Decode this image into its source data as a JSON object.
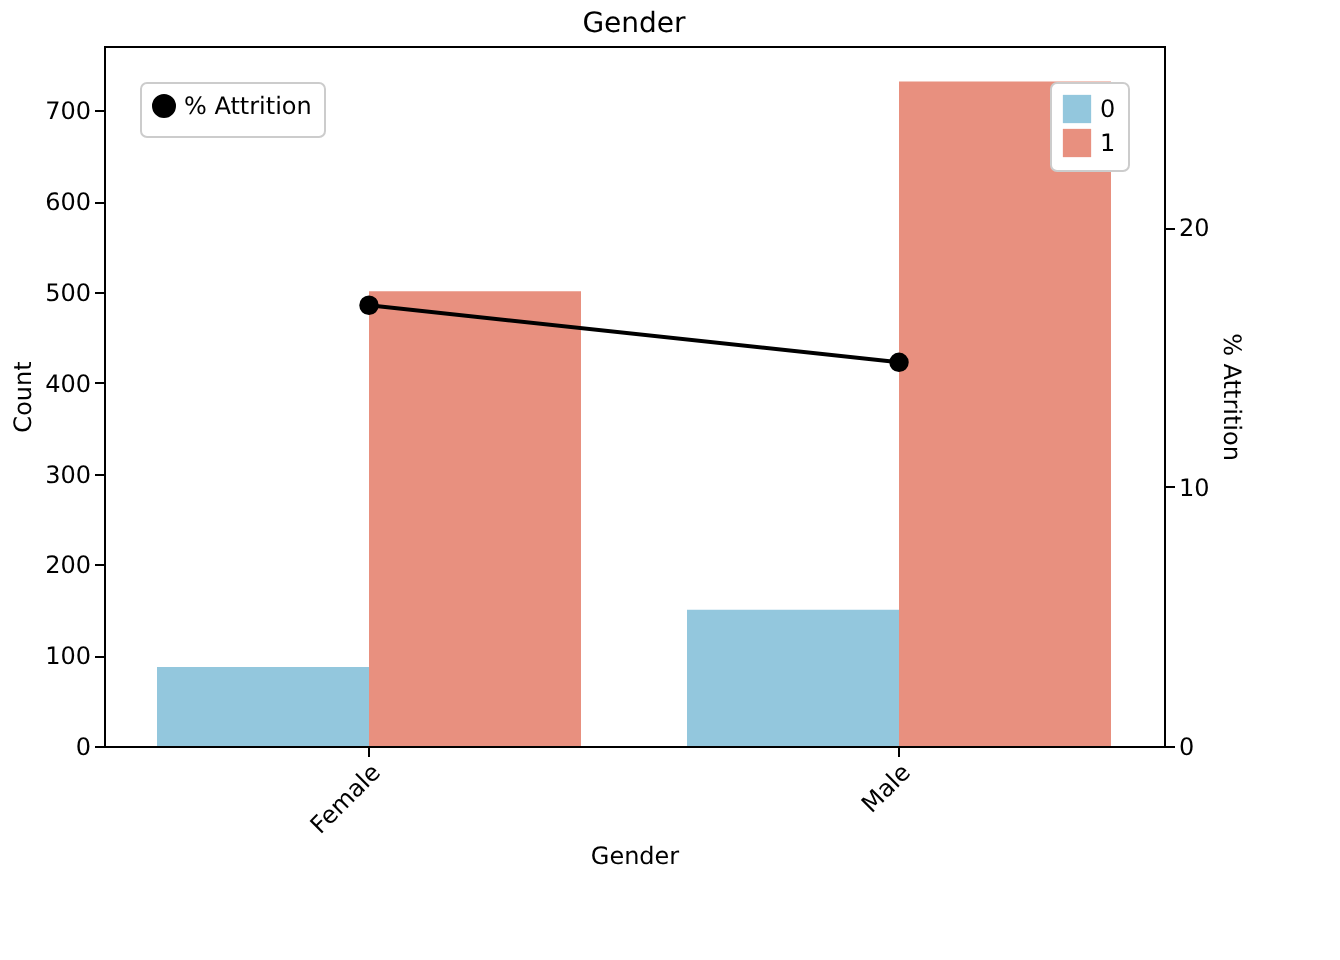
{
  "chart_data": {
    "type": "bar",
    "title": "Gender",
    "xlabel": "Gender",
    "ylabel": "Count",
    "y2label": "% Attrition",
    "categories": [
      "Female",
      "Male"
    ],
    "series": [
      {
        "name": "0",
        "color": "#93c7dd",
        "values": [
          87,
          150
        ]
      },
      {
        "name": "1",
        "color": "#e8907f",
        "values": [
          501,
          732
        ]
      },
      {
        "name": "% Attrition",
        "type": "line",
        "axis": "y2",
        "color": "#000000",
        "marker": "circle",
        "values": [
          17.0,
          14.8
        ]
      }
    ],
    "ylim": [
      0,
      771
    ],
    "yticks": [
      0,
      100,
      200,
      300,
      400,
      500,
      600,
      700
    ],
    "y2lim": [
      0,
      27
    ],
    "y2ticks": [
      0,
      10,
      20
    ],
    "grid": false,
    "legend": "top right"
  }
}
